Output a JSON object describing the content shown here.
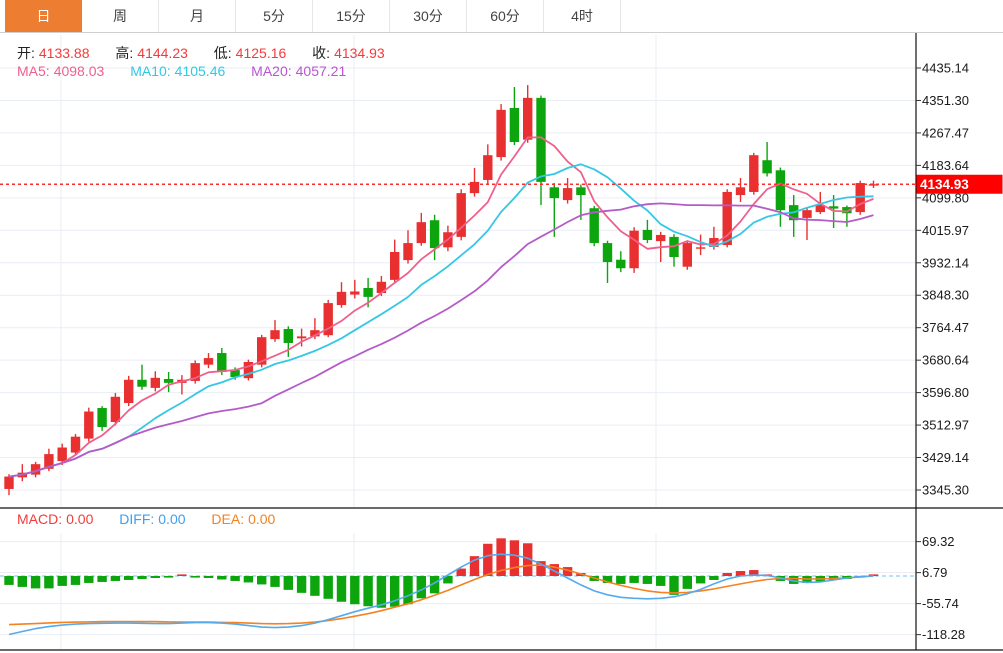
{
  "tabs": {
    "items": [
      {
        "label": "日",
        "selected": true
      },
      {
        "label": "周",
        "selected": false
      },
      {
        "label": "月",
        "selected": false
      },
      {
        "label": "5分",
        "selected": false
      },
      {
        "label": "15分",
        "selected": false
      },
      {
        "label": "30分",
        "selected": false
      },
      {
        "label": "60分",
        "selected": false
      },
      {
        "label": "4时",
        "selected": false
      }
    ]
  },
  "info": {
    "open_label": "开:",
    "open": "4133.88",
    "high_label": "高:",
    "high": "4144.23",
    "low_label": "低:",
    "low": "4125.16",
    "close_label": "收:",
    "close": "4134.93",
    "ma5_label": "MA5:",
    "ma5": "4098.03",
    "ma10_label": "MA10:",
    "ma10": "4105.46",
    "ma20_label": "MA20:",
    "ma20": "4057.21"
  },
  "macd_info": {
    "macd_label": "MACD:",
    "macd": "0.00",
    "diff_label": "DIFF:",
    "diff": "0.00",
    "dea_label": "DEA:",
    "dea": "0.00"
  },
  "colors": {
    "accent_orange": "#ED7D31",
    "up_red": "#E93030",
    "down_green": "#0DA50D",
    "ma5_pink": "#F0608C",
    "ma10_cyan": "#35C7E3",
    "ma20_purple": "#B55BC8",
    "diff_blue": "#55AAEE",
    "dea_orange": "#F58220",
    "price_line_red": "#FF2A2A",
    "price_box_red": "#FF0000",
    "grid": "#E9EEF5",
    "zero_dash_cyan": "#8ECDF2",
    "border_black": "#111111"
  },
  "chart_data": [
    {
      "type": "candlestick",
      "title": "",
      "ylabel": "",
      "ylim": [
        3345.3,
        4435.14
      ],
      "y_ticks": [
        "4435.14",
        "4351.30",
        "4267.47",
        "4183.64",
        "4099.80",
        "4015.97",
        "3932.14",
        "3848.30",
        "3764.47",
        "3680.64",
        "3596.80",
        "3512.97",
        "3429.14",
        "3345.30"
      ],
      "y_tick_values": [
        4435.14,
        4351.3,
        4267.47,
        4183.64,
        4099.8,
        4015.97,
        3932.14,
        3848.3,
        3764.47,
        3680.64,
        3596.8,
        3512.97,
        3429.14,
        3345.3
      ],
      "price_line": 4134.93,
      "price_line_label": "4134.93",
      "ma_periods": [
        5,
        10,
        20
      ],
      "vgrid_x": [
        61,
        354,
        656
      ],
      "legend_position": "top-left",
      "grid": true,
      "candles_ohlc": [
        [
          3348,
          3386,
          3332,
          3380
        ],
        [
          3378,
          3412,
          3368,
          3390
        ],
        [
          3385,
          3418,
          3378,
          3412
        ],
        [
          3400,
          3452,
          3394,
          3438
        ],
        [
          3420,
          3465,
          3410,
          3455
        ],
        [
          3442,
          3490,
          3436,
          3483
        ],
        [
          3478,
          3558,
          3470,
          3548
        ],
        [
          3557,
          3562,
          3498,
          3508
        ],
        [
          3521,
          3596,
          3512,
          3586
        ],
        [
          3570,
          3640,
          3562,
          3630
        ],
        [
          3630,
          3669,
          3604,
          3612
        ],
        [
          3609,
          3652,
          3600,
          3635
        ],
        [
          3632,
          3650,
          3598,
          3622
        ],
        [
          3622,
          3642,
          3592,
          3630
        ],
        [
          3627,
          3680,
          3620,
          3673
        ],
        [
          3669,
          3699,
          3660,
          3686
        ],
        [
          3699,
          3712,
          3642,
          3650
        ],
        [
          3655,
          3662,
          3630,
          3637
        ],
        [
          3634,
          3682,
          3628,
          3676
        ],
        [
          3669,
          3746,
          3662,
          3740
        ],
        [
          3735,
          3784,
          3728,
          3758
        ],
        [
          3761,
          3768,
          3689,
          3725
        ],
        [
          3737,
          3762,
          3716,
          3742
        ],
        [
          3742,
          3789,
          3735,
          3758
        ],
        [
          3745,
          3836,
          3740,
          3828
        ],
        [
          3823,
          3882,
          3816,
          3857
        ],
        [
          3850,
          3888,
          3840,
          3858
        ],
        [
          3867,
          3893,
          3817,
          3844
        ],
        [
          3854,
          3898,
          3846,
          3883
        ],
        [
          3888,
          3992,
          3878,
          3960
        ],
        [
          3939,
          4016,
          3930,
          3983
        ],
        [
          3983,
          4061,
          3976,
          4037
        ],
        [
          4042,
          4056,
          3939,
          3970
        ],
        [
          3972,
          4028,
          3962,
          4011
        ],
        [
          3999,
          4122,
          3990,
          4112
        ],
        [
          4112,
          4177,
          4103,
          4141
        ],
        [
          4146,
          4238,
          4136,
          4210
        ],
        [
          4205,
          4342,
          4196,
          4327
        ],
        [
          4332,
          4386,
          4236,
          4244
        ],
        [
          4250,
          4391,
          4242,
          4358
        ],
        [
          4358,
          4364,
          4081,
          4141
        ],
        [
          4127,
          4138,
          3999,
          4099
        ],
        [
          4094,
          4151,
          4085,
          4125
        ],
        [
          4127,
          4134,
          4043,
          4107
        ],
        [
          4073,
          4079,
          3975,
          3983
        ],
        [
          3983,
          3989,
          3880,
          3934
        ],
        [
          3940,
          3962,
          3908,
          3918
        ],
        [
          3918,
          4024,
          3906,
          4015
        ],
        [
          4017,
          4043,
          3983,
          3991
        ],
        [
          3988,
          4012,
          3934,
          4004
        ],
        [
          3999,
          4006,
          3922,
          3947
        ],
        [
          3922,
          3990,
          3914,
          3983
        ],
        [
          3970,
          4005,
          3952,
          3972
        ],
        [
          3973,
          4025,
          3966,
          3996
        ],
        [
          3978,
          4122,
          3972,
          4115
        ],
        [
          4107,
          4151,
          4089,
          4127
        ],
        [
          4115,
          4216,
          4108,
          4210
        ],
        [
          4197,
          4244,
          4155,
          4163
        ],
        [
          4171,
          4178,
          4025,
          4068
        ],
        [
          4081,
          4107,
          3999,
          4042
        ],
        [
          4048,
          4075,
          3991,
          4068
        ],
        [
          4063,
          4115,
          4058,
          4081
        ],
        [
          4078,
          4107,
          4022,
          4072
        ],
        [
          4076,
          4080,
          4025,
          4060
        ],
        [
          4063,
          4144,
          4056,
          4138
        ],
        [
          4133.88,
          4144.23,
          4125.16,
          4134.93
        ]
      ]
    },
    {
      "type": "bar",
      "title": "MACD",
      "y_ticks": [
        "69.32",
        "6.79",
        "-55.74",
        "-118.28"
      ],
      "y_tick_values": [
        69.32,
        6.79,
        -55.74,
        -118.28
      ],
      "vgrid_x": [
        61,
        354,
        656
      ],
      "hist": [
        -18,
        -22,
        -25,
        -25,
        -20,
        -18,
        -14,
        -12,
        -10,
        -8,
        -6,
        -4,
        -3,
        1,
        -2,
        -4,
        -7,
        -10,
        -13,
        -17,
        -22,
        -28,
        -34,
        -40,
        -46,
        -52,
        -57,
        -61,
        -64,
        -62,
        -57,
        -45,
        -35,
        -15,
        15,
        40,
        65,
        76,
        72,
        66,
        30,
        24,
        18,
        6,
        -10,
        -14,
        -16,
        -14,
        -16,
        -20,
        -38,
        -26,
        -15,
        -8,
        6,
        10,
        12,
        2,
        -10,
        -16,
        -14,
        -11,
        -8,
        -6,
        -3,
        0.5
      ],
      "diff": [
        -118,
        -112,
        -106,
        -102,
        -99,
        -97,
        -96,
        -95.5,
        -95,
        -95,
        -95.5,
        -96,
        -96,
        -95,
        -94,
        -94,
        -95,
        -97,
        -100,
        -103,
        -104,
        -103,
        -100,
        -95,
        -88,
        -80,
        -72,
        -65,
        -58,
        -50,
        -40,
        -28,
        -14,
        2,
        18,
        32,
        41,
        44,
        42,
        36,
        24,
        10,
        -4,
        -18,
        -30,
        -38,
        -43,
        -45,
        -46,
        -45,
        -42,
        -36,
        -27,
        -16,
        -6,
        0,
        2,
        1,
        -4,
        -10,
        -13,
        -12,
        -8,
        -4,
        -1,
        0
      ],
      "dea": [
        -98,
        -97,
        -96,
        -94.5,
        -93.5,
        -93,
        -92.5,
        -92,
        -92,
        -92,
        -92,
        -92,
        -92.5,
        -93,
        -93,
        -93,
        -93.5,
        -94,
        -95,
        -96,
        -96.5,
        -96,
        -95,
        -93,
        -90,
        -86,
        -81,
        -76,
        -70,
        -63,
        -56,
        -48,
        -39,
        -29,
        -18,
        -7,
        3,
        11,
        17,
        21,
        22,
        18,
        12,
        4,
        -4,
        -12,
        -19,
        -25,
        -30,
        -33,
        -34,
        -33,
        -30,
        -26,
        -21,
        -16,
        -11,
        -7,
        -5,
        -5,
        -6,
        -6,
        -5,
        -4,
        -2,
        0
      ]
    }
  ]
}
